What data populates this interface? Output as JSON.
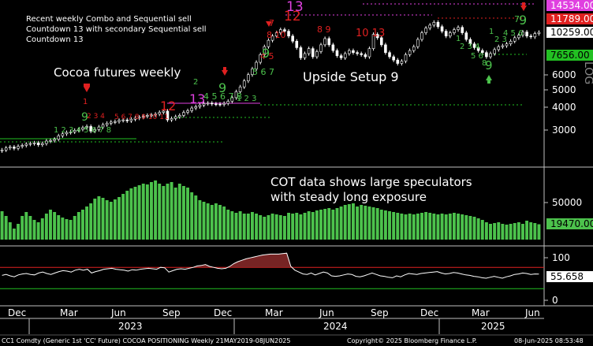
{
  "chart_data": [
    {
      "type": "candlestick",
      "title": "Cocoa futures weekly",
      "yscale": "log",
      "ylim": [
        2000,
        14534
      ],
      "yticks": [
        "3000",
        "4000",
        "5000",
        "6000"
      ],
      "ylabel": "LOG",
      "annotations": {
        "top_left": [
          "Recent weekly Combo and Sequential sell",
          "Countdown 13 with secondary Sequential sell",
          "Countdown 13"
        ],
        "middle": "Upside Setup 9"
      },
      "price_tags": [
        {
          "value": "14534.00",
          "color": "#e040e0"
        },
        {
          "value": "11789.00",
          "color": "#e02020"
        },
        {
          "value": "10259.00",
          "color": "#ffffff"
        },
        {
          "value": "7656.00",
          "color": "#22c022"
        }
      ],
      "close": [
        2420,
        2480,
        2510,
        2470,
        2530,
        2560,
        2600,
        2620,
        2640,
        2580,
        2620,
        2700,
        2720,
        2760,
        2880,
        2950,
        3000,
        3020,
        3080,
        3120,
        3180,
        3230,
        3050,
        3110,
        3210,
        3300,
        3360,
        3410,
        3430,
        3480,
        3500,
        3460,
        3530,
        3580,
        3620,
        3660,
        3700,
        3720,
        3760,
        3840,
        3900,
        3500,
        3560,
        3640,
        3700,
        3840,
        3920,
        4050,
        4120,
        4200,
        4280,
        4300,
        4260,
        4250,
        4230,
        4290,
        4400,
        4600,
        4950,
        5250,
        5650,
        6100,
        6550,
        7100,
        7800,
        8600,
        9300,
        9800,
        10200,
        10600,
        10400,
        9800,
        9200,
        8500,
        7500,
        7900,
        8400,
        7600,
        8100,
        8800,
        9500,
        8800,
        8200,
        7700,
        7500,
        7900,
        8200,
        8000,
        7900,
        7800,
        7600,
        8400,
        10000,
        9600,
        8800,
        8000,
        7600,
        7300,
        7000,
        7200,
        7800,
        8200,
        8600,
        9400,
        10200,
        10800,
        11200,
        11600,
        11000,
        10400,
        9800,
        10200,
        10600,
        10900,
        10200,
        9400,
        8900,
        8500,
        8200,
        8000,
        7600,
        7900,
        8300,
        8600,
        8700,
        8900,
        9200,
        9600,
        9900,
        10300,
        9800,
        9700,
        10100,
        10259
      ]
    },
    {
      "type": "bar",
      "title": "COT data shows large speculators with steady long exposure",
      "ylim": [
        0,
        90000
      ],
      "yticks": [
        "50000"
      ],
      "last_value": "19470.00",
      "color": "#4cc24c",
      "values": [
        36000,
        30000,
        22000,
        14000,
        20000,
        30000,
        35000,
        30000,
        25000,
        22000,
        27000,
        33000,
        38000,
        35000,
        31000,
        28000,
        26000,
        25000,
        30000,
        35000,
        38000,
        42000,
        46000,
        52000,
        55000,
        53000,
        50000,
        48000,
        51000,
        54000,
        58000,
        62000,
        65000,
        67000,
        69000,
        71000,
        70000,
        73000,
        75000,
        71000,
        68000,
        71000,
        73000,
        66000,
        71000,
        68000,
        66000,
        60000,
        56000,
        50000,
        48000,
        46000,
        44000,
        46000,
        44000,
        42000,
        38000,
        36000,
        34000,
        36000,
        33000,
        33000,
        35000,
        33000,
        31000,
        29000,
        31000,
        33000,
        32000,
        31000,
        30000,
        34000,
        33000,
        34000,
        32000,
        34000,
        36000,
        35000,
        37000,
        38000,
        39000,
        40000,
        38000,
        40000,
        42000,
        44000,
        45000,
        46000,
        42000,
        44000,
        43000,
        42000,
        41000,
        40000,
        38000,
        37000,
        36000,
        35000,
        34000,
        33000,
        32000,
        33000,
        32000,
        33000,
        34000,
        35000,
        34000,
        33000,
        32000,
        33000,
        32000,
        33000,
        34000,
        33000,
        32000,
        31000,
        30000,
        29000,
        27000,
        25000,
        22000,
        20000,
        21000,
        22000,
        20000,
        19000,
        20000,
        21000,
        22000,
        20000,
        24000,
        22000,
        21000,
        19470
      ]
    },
    {
      "type": "line",
      "ylim": [
        -8,
        112
      ],
      "yticks": [
        "100",
        "50",
        "0"
      ],
      "last_value": "55.658",
      "hlines": [
        {
          "value": 70,
          "color": "#e02020"
        },
        {
          "value": 25,
          "color": "#22c022"
        }
      ],
      "values": [
        53,
        55,
        52,
        50,
        54,
        56,
        57,
        55,
        54,
        58,
        60,
        57,
        55,
        58,
        61,
        63,
        62,
        60,
        64,
        66,
        64,
        66,
        58,
        61,
        63,
        66,
        67,
        68,
        66,
        65,
        64,
        62,
        65,
        64,
        66,
        67,
        68,
        67,
        66,
        70,
        69,
        60,
        63,
        66,
        67,
        66,
        68,
        70,
        73,
        74,
        76,
        72,
        70,
        68,
        67,
        68,
        72,
        78,
        82,
        85,
        88,
        90,
        92,
        94,
        96,
        97,
        98,
        98,
        98,
        99,
        100,
        72,
        64,
        60,
        56,
        55,
        58,
        54,
        57,
        60,
        58,
        52,
        51,
        52,
        54,
        56,
        55,
        51,
        50,
        52,
        55,
        58,
        55,
        52,
        51,
        49,
        48,
        52,
        50,
        54,
        57,
        56,
        55,
        57,
        58,
        59,
        60,
        61,
        58,
        56,
        57,
        59,
        58,
        56,
        54,
        53,
        51,
        50,
        48,
        47,
        49,
        51,
        49,
        47,
        50,
        52,
        55,
        56,
        58,
        57,
        55,
        56,
        55.658
      ]
    }
  ],
  "x_axis": {
    "months": [
      "Dec",
      "Mar",
      "Jun",
      "Sep",
      "Dec",
      "Mar",
      "Jun",
      "Sep",
      "Dec",
      "Mar",
      "Jun"
    ],
    "years": [
      "2023",
      "2024",
      "2025"
    ]
  },
  "footer": {
    "left": "CC1 Comdty (Generic 1st 'CC' Future) COCOA POSITIONING  Weekly 21MAY2019-08JUN2025",
    "center": "Copyright© 2025 Bloomberg Finance L.P.",
    "right": "08-Jun-2025 08:53:48"
  },
  "colors": {
    "background": "#000000",
    "candles": "#ffffff",
    "cot_bars": "#4cc24c",
    "up_count": "#4cc24c",
    "down_count": "#e02020",
    "thirteen": "#e040e0"
  }
}
